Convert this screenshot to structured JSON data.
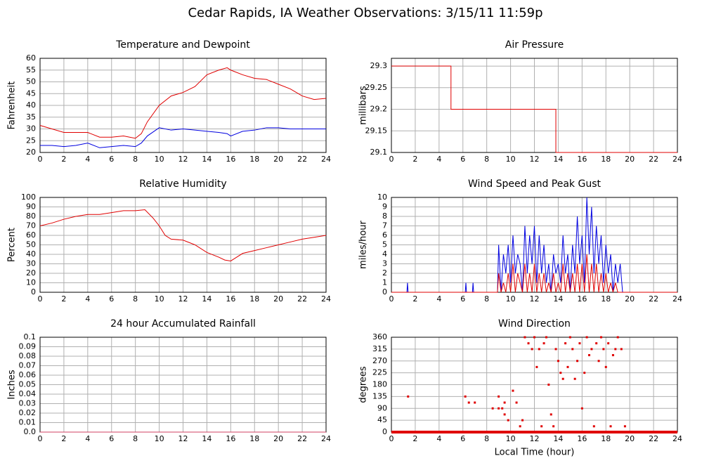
{
  "title": "Cedar Rapids, IA Weather Observations: 3/15/11 11:59p",
  "chart_data": [
    {
      "type": "line",
      "title": "Temperature and Dewpoint",
      "ylabel": "Fahrenheit",
      "xlim": [
        0,
        24
      ],
      "xticks": [
        0,
        2,
        4,
        6,
        8,
        10,
        12,
        14,
        16,
        18,
        20,
        22,
        24
      ],
      "ylim": [
        20,
        60
      ],
      "yticks": [
        20,
        25,
        30,
        35,
        40,
        45,
        50,
        55,
        60
      ],
      "grid": true,
      "x": [
        0,
        1,
        2,
        3,
        4,
        5,
        6,
        7,
        8,
        8.5,
        9,
        10,
        11,
        12,
        13,
        14,
        15,
        15.7,
        16,
        17,
        18,
        19,
        20,
        21,
        22,
        23,
        24
      ],
      "series": [
        {
          "color": "#e00000",
          "values": [
            31.5,
            30,
            28.5,
            28.5,
            28.5,
            26.5,
            26.5,
            27,
            26,
            28,
            33,
            40,
            44,
            45.5,
            48,
            53,
            55,
            56,
            55,
            53,
            51.5,
            51,
            49,
            47,
            44,
            42.5,
            43
          ]
        },
        {
          "color": "#0000e0",
          "values": [
            23,
            23,
            22.5,
            23,
            24,
            22,
            22.5,
            23,
            22.5,
            24,
            27,
            30.5,
            29.5,
            30,
            29.5,
            29,
            28.5,
            28,
            27,
            29,
            29.5,
            30.5,
            30.5,
            30,
            30,
            30,
            30
          ]
        }
      ]
    },
    {
      "type": "line",
      "title": "Air Pressure",
      "ylabel": "millibars",
      "xlim": [
        0,
        24
      ],
      "xticks": [
        0,
        2,
        4,
        6,
        8,
        10,
        12,
        14,
        16,
        18,
        20,
        22,
        24
      ],
      "ylim": [
        29.1,
        29.318
      ],
      "yticks": [
        29.1,
        29.15,
        29.2,
        29.25,
        29.3
      ],
      "grid": true,
      "x": [
        0,
        5,
        5,
        13.8,
        13.8,
        24
      ],
      "series": [
        {
          "color": "#e00000",
          "values": [
            29.3,
            29.3,
            29.2,
            29.2,
            29.1,
            29.1
          ]
        }
      ]
    },
    {
      "type": "line",
      "title": "Relative Humidity",
      "ylabel": "Percent",
      "xlim": [
        0,
        24
      ],
      "xticks": [
        0,
        2,
        4,
        6,
        8,
        10,
        12,
        14,
        16,
        18,
        20,
        22,
        24
      ],
      "ylim": [
        0,
        100
      ],
      "yticks": [
        0,
        10,
        20,
        30,
        40,
        50,
        60,
        70,
        80,
        90,
        100
      ],
      "grid": true,
      "x": [
        0,
        1,
        2,
        3,
        4,
        5,
        6,
        7,
        8,
        8.8,
        9.5,
        10,
        10.5,
        11,
        12,
        13,
        14,
        15,
        15.5,
        16,
        16.5,
        17,
        18,
        19,
        20,
        21,
        22,
        23,
        24
      ],
      "series": [
        {
          "color": "#e00000",
          "values": [
            70,
            73,
            77,
            80,
            82,
            82,
            84,
            86,
            86,
            87,
            78,
            70,
            60,
            56,
            55,
            50,
            42,
            37,
            34,
            33,
            37,
            41,
            44,
            47,
            50,
            53,
            56,
            58,
            60
          ]
        }
      ]
    },
    {
      "type": "line",
      "title": "Wind Speed and Peak Gust",
      "ylabel": "miles/hour",
      "xlim": [
        0,
        24
      ],
      "xticks": [
        0,
        2,
        4,
        6,
        8,
        10,
        12,
        14,
        16,
        18,
        20,
        22,
        24
      ],
      "ylim": [
        0,
        10
      ],
      "yticks": [
        0,
        1,
        2,
        3,
        4,
        5,
        6,
        7,
        8,
        9,
        10
      ],
      "grid": true,
      "x": [
        0,
        1.3,
        1.35,
        1.4,
        6.2,
        6.25,
        6.3,
        6.8,
        6.85,
        6.9,
        8.9,
        9.0,
        9.2,
        9.4,
        9.6,
        9.8,
        10.0,
        10.2,
        10.4,
        10.6,
        10.8,
        11.0,
        11.2,
        11.4,
        11.6,
        11.8,
        12.0,
        12.2,
        12.4,
        12.6,
        12.8,
        13.0,
        13.2,
        13.4,
        13.6,
        13.8,
        14.0,
        14.2,
        14.4,
        14.6,
        14.8,
        15.0,
        15.2,
        15.4,
        15.6,
        15.8,
        16.0,
        16.2,
        16.4,
        16.6,
        16.8,
        17.0,
        17.2,
        17.4,
        17.6,
        17.8,
        18.0,
        18.2,
        18.4,
        18.6,
        18.8,
        19.0,
        19.2,
        19.4,
        19.6,
        24
      ],
      "series": [
        {
          "color": "#0000e0",
          "values": [
            0,
            0,
            1,
            0,
            0,
            1,
            0,
            0,
            1,
            0,
            0,
            5,
            0,
            4,
            2,
            5,
            1,
            6,
            2,
            4,
            3,
            0,
            7,
            2,
            6,
            3,
            7,
            1,
            6,
            2,
            5,
            1,
            3,
            0,
            4,
            2,
            3,
            1,
            6,
            2,
            4,
            0,
            5,
            2,
            8,
            3,
            6,
            1,
            10,
            4,
            9,
            2,
            7,
            3,
            6,
            1,
            5,
            2,
            4,
            0,
            3,
            1,
            3,
            0,
            0,
            0
          ]
        },
        {
          "color": "#e00000",
          "values": [
            0,
            0,
            0,
            0,
            0,
            0,
            0,
            0,
            0,
            0,
            0,
            2,
            0,
            1,
            0,
            2,
            0,
            3,
            0,
            2,
            1,
            0,
            3,
            0,
            2,
            0,
            3,
            0,
            2,
            0,
            2,
            0,
            1,
            0,
            2,
            0,
            1,
            0,
            3,
            0,
            2,
            0,
            2,
            0,
            3,
            0,
            3,
            0,
            4,
            0,
            3,
            0,
            3,
            0,
            2,
            0,
            2,
            0,
            1,
            0,
            1,
            0,
            0,
            0,
            0,
            0
          ]
        }
      ]
    },
    {
      "type": "line",
      "title": "24 hour Accumulated Rainfall",
      "ylabel": "Inches",
      "xlim": [
        0,
        24
      ],
      "xticks": [
        0,
        2,
        4,
        6,
        8,
        10,
        12,
        14,
        16,
        18,
        20,
        22,
        24
      ],
      "ylim": [
        0,
        0.1
      ],
      "yticks": [
        {
          "value": 0,
          "label": "0.0"
        },
        0.01,
        0.02,
        0.03,
        0.04,
        0.05,
        0.06,
        0.07,
        0.08,
        0.09,
        0.1
      ],
      "grid": true,
      "x": [
        0,
        24
      ],
      "series": [
        {
          "color": "#d04060",
          "values": [
            0,
            0
          ]
        }
      ]
    },
    {
      "type": "scatter",
      "title": "Wind Direction",
      "ylabel": "degrees",
      "xlabel": "Local Time (hour)",
      "xlim": [
        0,
        24
      ],
      "xticks": [
        0,
        2,
        4,
        6,
        8,
        10,
        12,
        14,
        16,
        18,
        20,
        22,
        24
      ],
      "ylim": [
        0,
        360
      ],
      "yticks": [
        0,
        45,
        90,
        135,
        180,
        225,
        270,
        315,
        360
      ],
      "grid": true,
      "series": [
        {
          "color": "#e00000",
          "mode": "markers",
          "x": [
            1.4,
            6.2,
            6.5,
            7,
            8.5,
            9,
            9.3,
            9.5,
            9,
            9.5,
            9.8,
            10.2,
            10.5,
            10.8,
            11,
            11.2,
            11.5,
            11.8,
            12,
            12.2,
            12.4,
            12.6,
            12.8,
            13,
            13.2,
            13.4,
            13.6,
            13.8,
            14,
            14.2,
            14.4,
            14.6,
            14.8,
            15,
            15.2,
            15.4,
            15.6,
            15.8,
            16,
            16.2,
            16.4,
            16.6,
            16.8,
            17,
            17.2,
            17.4,
            17.6,
            17.8,
            18,
            18.2,
            18.4,
            18.6,
            18.8,
            19,
            19.3,
            19.6
          ],
          "values": [
            135,
            135,
            112,
            112,
            90,
            90,
            90,
            67,
            135,
            112,
            45,
            157,
            112,
            22,
            45,
            360,
            337,
            315,
            360,
            247,
            315,
            22,
            337,
            360,
            180,
            67,
            22,
            315,
            270,
            225,
            202,
            337,
            247,
            360,
            315,
            202,
            270,
            337,
            90,
            225,
            360,
            292,
            315,
            22,
            337,
            270,
            360,
            315,
            247,
            337,
            22,
            292,
            315,
            360,
            315,
            22
          ]
        },
        {
          "color": "#e00000",
          "mode": "line",
          "x": [
            0,
            24
          ],
          "values": [
            0,
            0
          ]
        }
      ]
    }
  ]
}
